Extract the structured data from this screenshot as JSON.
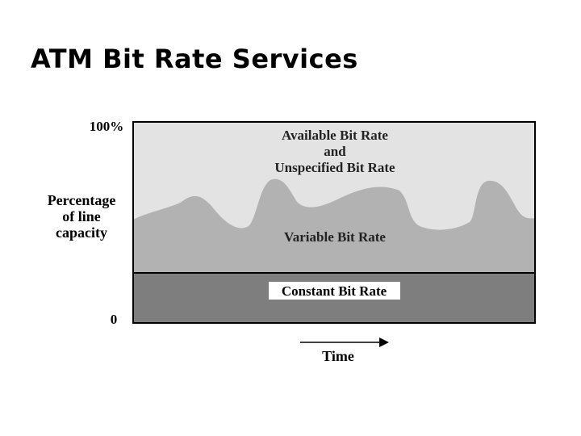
{
  "slide": {
    "title": "ATM Bit Rate Services"
  },
  "diagram": {
    "y_axis": {
      "top_label": "100%",
      "bottom_label": "0",
      "title_lines": [
        "Percentage",
        "of line",
        "capacity"
      ]
    },
    "x_axis": {
      "label": "Time"
    },
    "regions": {
      "top_lines": [
        "Available Bit Rate",
        "and",
        "Unspecified Bit Rate"
      ],
      "middle": "Variable Bit Rate",
      "bottom": "Constant Bit Rate"
    },
    "colors": {
      "available": "#e3e3e3",
      "variable": "#b2b2b2",
      "constant": "#7e7e7e",
      "border": "#000000"
    }
  }
}
